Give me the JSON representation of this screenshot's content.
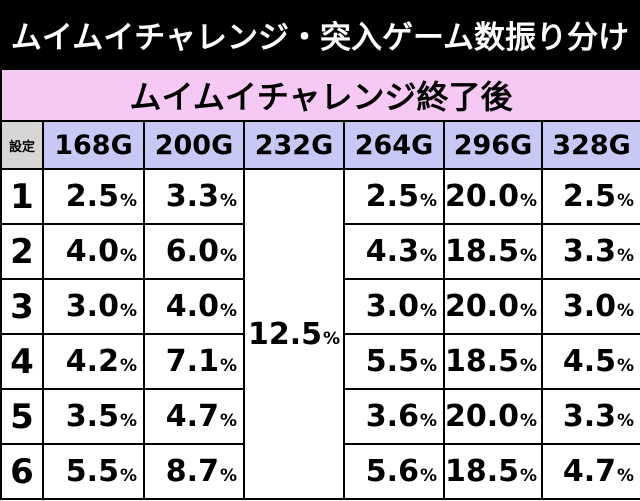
{
  "title": "ムイムイチャレンジ・突入ゲーム数振り分け",
  "table": {
    "sub_header": "ムイムイチャレンジ終了後",
    "setting_label": "設定",
    "columns": [
      "168G",
      "200G",
      "232G",
      "264G",
      "296G",
      "328G"
    ],
    "merged_value": "12.5",
    "percent_sign": "%",
    "rows": [
      {
        "setting": "1",
        "v168": "2.5",
        "v200": "3.3",
        "v264": "2.5",
        "v296": "20.0",
        "v328": "2.5"
      },
      {
        "setting": "2",
        "v168": "4.0",
        "v200": "6.0",
        "v264": "4.3",
        "v296": "18.5",
        "v328": "3.3"
      },
      {
        "setting": "3",
        "v168": "3.0",
        "v200": "4.0",
        "v264": "3.0",
        "v296": "20.0",
        "v328": "3.0"
      },
      {
        "setting": "4",
        "v168": "4.2",
        "v200": "7.1",
        "v264": "5.5",
        "v296": "18.5",
        "v328": "4.5"
      },
      {
        "setting": "5",
        "v168": "3.5",
        "v200": "4.7",
        "v264": "3.6",
        "v296": "20.0",
        "v328": "3.3"
      },
      {
        "setting": "6",
        "v168": "5.5",
        "v200": "8.7",
        "v264": "5.6",
        "v296": "18.5",
        "v328": "4.7"
      }
    ]
  },
  "colors": {
    "title_bg": "#000000",
    "sub_header_bg": "#f6c8f4",
    "column_header_bg": "#c8c8f4",
    "setting_header_bg": "#d6d6d6"
  }
}
